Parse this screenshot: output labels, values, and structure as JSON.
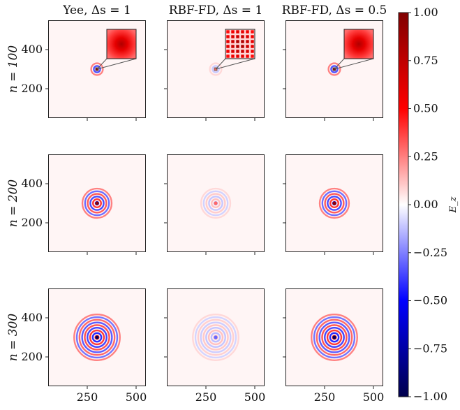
{
  "chart_data": {
    "type": "heatmap",
    "description_free": true,
    "columns": [
      {
        "title": "Yee, Δs = 1",
        "amplitude": 0.45,
        "center_value": 0.95,
        "inset": "smooth"
      },
      {
        "title": "RBF-FD, Δs = 1",
        "amplitude": 0.14,
        "center_value": 0.3,
        "inset": "checker"
      },
      {
        "title": "RBF-FD, Δs = 0.5",
        "amplitude": 0.45,
        "center_value": 0.95,
        "inset": "smooth"
      }
    ],
    "rows": [
      {
        "label": "n = 100",
        "n": 100,
        "radius": 30,
        "center_sign": 1
      },
      {
        "label": "n = 200",
        "n": 200,
        "radius": 75,
        "center_sign": 1
      },
      {
        "label": "n = 300",
        "n": 300,
        "radius": 117,
        "center_sign": -1
      }
    ],
    "source_center": [
      300,
      300
    ],
    "xlim": [
      50,
      550
    ],
    "ylim": [
      50,
      550
    ],
    "x_ticks": [
      250,
      500
    ],
    "x_tick_labels": [
      "250",
      "500"
    ],
    "y_ticks": [
      200,
      400
    ],
    "y_tick_labels": [
      "200",
      "400"
    ],
    "colorbar": {
      "label": "E_z",
      "min": -1.0,
      "max": 1.0,
      "ticks": [
        1.0,
        0.75,
        0.5,
        0.25,
        0.0,
        -0.25,
        -0.5,
        -0.75,
        -1.0
      ],
      "tick_labels": [
        "1.00",
        "0.75",
        "0.50",
        "0.25",
        "0.00",
        "−0.25",
        "−0.50",
        "−0.75",
        "−1.00"
      ],
      "colormap": "seismic"
    }
  }
}
